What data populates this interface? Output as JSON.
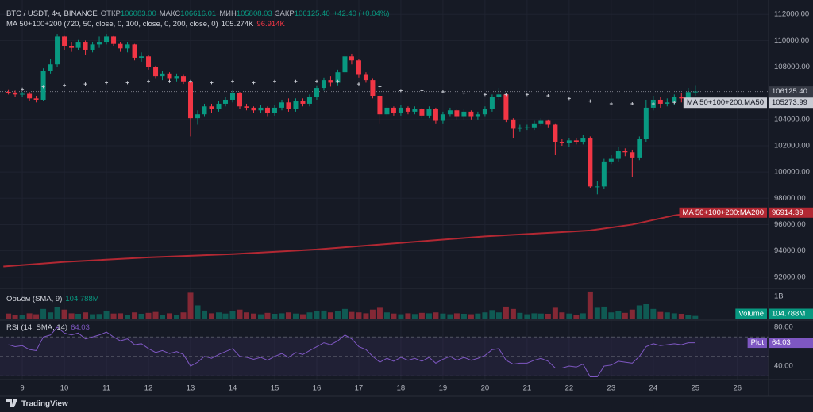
{
  "chart_data": {
    "type": "candlestick",
    "title": "BTC / USDT, 4ч, BINANCE",
    "ohlc_legend": [
      {
        "label": "ОТКР",
        "value": "106083.00"
      },
      {
        "label": "МАКС",
        "value": "106616.01"
      },
      {
        "label": "МИН",
        "value": "105808.03"
      },
      {
        "label": "ЗАКР",
        "value": "106125.40"
      }
    ],
    "change": "+42.40 (+0.04%)",
    "x": [
      8.67,
      8.83,
      9,
      9.17,
      9.33,
      9.5,
      9.67,
      9.83,
      10,
      10.17,
      10.33,
      10.5,
      10.67,
      10.83,
      11,
      11.17,
      11.33,
      11.5,
      11.67,
      11.83,
      12,
      12.17,
      12.33,
      12.5,
      12.67,
      12.83,
      13,
      13.17,
      13.33,
      13.5,
      13.67,
      13.83,
      14,
      14.17,
      14.33,
      14.5,
      14.67,
      14.83,
      15,
      15.17,
      15.33,
      15.5,
      15.67,
      15.83,
      16,
      16.17,
      16.33,
      16.5,
      16.67,
      16.83,
      17,
      17.17,
      17.33,
      17.5,
      17.67,
      17.83,
      18,
      18.17,
      18.33,
      18.5,
      18.67,
      18.83,
      19,
      19.17,
      19.33,
      19.5,
      19.67,
      19.83,
      20,
      20.17,
      20.33,
      20.5,
      20.67,
      20.83,
      21,
      21.17,
      21.33,
      21.5,
      21.67,
      21.83,
      22,
      22.17,
      22.33,
      22.5,
      22.67,
      22.83,
      23,
      23.17,
      23.33,
      23.5,
      23.67,
      23.83,
      24,
      24.17,
      24.33,
      24.5,
      24.67,
      24.83,
      25
    ],
    "xlim": [
      8.47,
      26.74
    ],
    "xticks": [
      9,
      10,
      11,
      12,
      13,
      14,
      15,
      16,
      17,
      18,
      19,
      20,
      21,
      22,
      23,
      24,
      25,
      26
    ],
    "open": [
      106100,
      106050,
      105900,
      105950,
      105600,
      105500,
      107700,
      108200,
      110300,
      109600,
      109500,
      109900,
      109300,
      109700,
      109900,
      110300,
      109800,
      109400,
      109700,
      108700,
      108800,
      108000,
      107300,
      107500,
      107100,
      107300,
      106900,
      104100,
      104400,
      105000,
      104800,
      105200,
      105500,
      106000,
      105000,
      104900,
      104700,
      104900,
      104500,
      104900,
      105300,
      104800,
      105400,
      105200,
      105700,
      106400,
      107000,
      106800,
      107600,
      108800,
      108500,
      107400,
      107000,
      105800,
      104400,
      104900,
      104500,
      104900,
      104600,
      104800,
      104300,
      104800,
      103900,
      104400,
      104700,
      104200,
      104600,
      104200,
      104400,
      104800,
      105700,
      105900,
      104000,
      103300,
      103400,
      103400,
      103700,
      103900,
      103600,
      102300,
      102200,
      102400,
      102300,
      102600,
      98900,
      98900,
      100800,
      101000,
      101600,
      101500,
      101100,
      102500,
      104900,
      105500,
      105200,
      105300,
      105700,
      105600,
      106083
    ],
    "high": [
      106300,
      106200,
      106100,
      106100,
      105800,
      107900,
      108600,
      110500,
      110400,
      109900,
      110100,
      110000,
      109900,
      110300,
      110500,
      110400,
      109900,
      109900,
      109800,
      109100,
      108900,
      108100,
      107700,
      107600,
      107500,
      107400,
      107000,
      104700,
      105200,
      105200,
      105400,
      105700,
      106200,
      106100,
      105200,
      105000,
      105100,
      105000,
      105100,
      105500,
      105600,
      105600,
      105600,
      105900,
      106600,
      107200,
      107300,
      107800,
      109000,
      109000,
      108600,
      107600,
      107100,
      105900,
      105100,
      105000,
      105100,
      105000,
      105000,
      104900,
      105000,
      104900,
      104600,
      104900,
      104800,
      104800,
      104700,
      104600,
      105000,
      105900,
      106400,
      106000,
      104100,
      103600,
      103600,
      103900,
      104100,
      104000,
      103700,
      102500,
      102600,
      102600,
      102800,
      102700,
      99300,
      101000,
      101300,
      101900,
      101800,
      101700,
      102700,
      105500,
      105800,
      105700,
      105600,
      105900,
      106000,
      106400,
      106616.01
    ],
    "low": [
      105900,
      105700,
      105700,
      105400,
      105300,
      105400,
      107500,
      108000,
      109300,
      109200,
      109300,
      108900,
      109100,
      109500,
      109700,
      109600,
      109200,
      109100,
      108500,
      108400,
      107800,
      107100,
      107000,
      106900,
      106900,
      106700,
      102700,
      103600,
      104200,
      104500,
      104600,
      105000,
      105300,
      104800,
      104700,
      104500,
      104500,
      104200,
      104300,
      104700,
      104600,
      104600,
      105000,
      105000,
      105500,
      106200,
      106500,
      106600,
      107400,
      108200,
      107200,
      106800,
      105600,
      103700,
      104200,
      104300,
      104300,
      104400,
      104400,
      104100,
      104100,
      103700,
      103700,
      104200,
      104000,
      104000,
      104000,
      104000,
      104200,
      104600,
      105500,
      103800,
      102600,
      103100,
      103200,
      103200,
      103500,
      103400,
      101300,
      102000,
      101900,
      102100,
      102100,
      98800,
      98300,
      98700,
      100600,
      100800,
      101200,
      99600,
      100900,
      102300,
      104700,
      104900,
      105000,
      105100,
      105300,
      105500,
      105808.03
    ],
    "close": [
      106050,
      105900,
      105950,
      105600,
      105500,
      107700,
      108200,
      110300,
      109600,
      109500,
      109900,
      109300,
      109700,
      109900,
      110300,
      109800,
      109400,
      109700,
      108700,
      108800,
      108000,
      107300,
      107500,
      107100,
      107300,
      106900,
      104100,
      104400,
      105000,
      104800,
      105200,
      105500,
      106000,
      105000,
      104900,
      104700,
      104900,
      104500,
      104900,
      105300,
      104800,
      105400,
      105200,
      105700,
      106400,
      107000,
      106800,
      107600,
      108800,
      108500,
      107400,
      107000,
      105800,
      104400,
      104900,
      104500,
      104900,
      104600,
      104800,
      104300,
      104800,
      103900,
      104400,
      104700,
      104200,
      104600,
      104200,
      104400,
      104800,
      105700,
      105900,
      104000,
      103300,
      103400,
      103400,
      103700,
      103900,
      103600,
      102300,
      102200,
      102400,
      102300,
      102600,
      98900,
      98900,
      100800,
      101000,
      101600,
      101500,
      101100,
      102500,
      104900,
      105500,
      105200,
      105300,
      105700,
      105600,
      106083,
      106125.4
    ],
    "up_color": "#089981",
    "down_color": "#f23645",
    "ylim": [
      91200,
      113100
    ],
    "yticks": [
      {
        "value": 92000,
        "label": "92000.00"
      },
      {
        "value": 94000,
        "label": "94000.00"
      },
      {
        "value": 96000,
        "label": "96000.00"
      },
      {
        "value": 98000,
        "label": "98000.00"
      },
      {
        "value": 100000,
        "label": "100000.00"
      },
      {
        "value": 102000,
        "label": "102000.00"
      },
      {
        "value": 104000,
        "label": "104000.00"
      },
      {
        "value": 106000,
        "label": "106000.00"
      },
      {
        "value": 108000,
        "label": "108000.00"
      },
      {
        "value": 110000,
        "label": "110000.00"
      },
      {
        "value": 112000,
        "label": "112000.00"
      }
    ],
    "grid": true,
    "last_price_label": "106125.40",
    "indicator": {
      "name": "MA 50+100+200 (720, 50, close, 0, 100, close, 0, 200, close, 0)",
      "legend_values": [
        "105.274K",
        "96.914K"
      ],
      "series": [
        {
          "name": "MA 50+100+200:MA50",
          "color": "#c9ccd4",
          "value_label": "105273.99",
          "values": [
            null,
            null,
            106300,
            null,
            null,
            106500,
            null,
            null,
            106600,
            null,
            null,
            106700,
            null,
            null,
            106800,
            null,
            null,
            106800,
            null,
            null,
            106900,
            null,
            null,
            106900,
            null,
            null,
            106900,
            null,
            null,
            106800,
            null,
            null,
            106900,
            null,
            null,
            106800,
            null,
            null,
            106900,
            null,
            null,
            106900,
            null,
            null,
            106900,
            null,
            null,
            106900,
            null,
            null,
            106700,
            null,
            null,
            106500,
            null,
            null,
            106200,
            null,
            null,
            106200,
            null,
            null,
            106100,
            null,
            null,
            106000,
            null,
            null,
            105900,
            null,
            null,
            105900,
            null,
            null,
            105900,
            null,
            null,
            105800,
            null,
            null,
            105600,
            null,
            null,
            105400,
            null,
            null,
            105200,
            null,
            null,
            105200,
            null,
            null,
            105200,
            null,
            null,
            105300,
            null,
            null,
            105273.99
          ]
        },
        {
          "name": "MA 50+100+200:MA200",
          "color": "#b22833",
          "value_label": "96914.39",
          "x": [
            8.55,
            10,
            12,
            14,
            16,
            18,
            20,
            22,
            22.5,
            23.5,
            24.5,
            25
          ],
          "values": [
            92800,
            93150,
            93500,
            93750,
            94100,
            94600,
            95100,
            95450,
            95550,
            96000,
            96700,
            96914.39
          ]
        }
      ]
    },
    "volume": {
      "title": "Объём (SMA, 9)",
      "sma_label": "104.788M",
      "axis_label": "Volume",
      "values": [
        250,
        180,
        200,
        260,
        220,
        450,
        300,
        520,
        420,
        260,
        240,
        300,
        220,
        230,
        350,
        250,
        260,
        200,
        300,
        240,
        280,
        320,
        200,
        260,
        180,
        300,
        1150,
        600,
        380,
        260,
        300,
        250,
        350,
        420,
        300,
        250,
        220,
        280,
        240,
        260,
        300,
        250,
        220,
        300,
        350,
        380,
        300,
        350,
        450,
        320,
        300,
        260,
        420,
        500,
        300,
        250,
        220,
        260,
        230,
        280,
        260,
        300,
        250,
        220,
        260,
        240,
        220,
        250,
        300,
        400,
        300,
        550,
        450,
        280,
        220,
        260,
        250,
        240,
        500,
        300,
        250,
        200,
        260,
        1200,
        500,
        550,
        300,
        350,
        280,
        420,
        600,
        650,
        450,
        320,
        300,
        260,
        240,
        200,
        150
      ],
      "ylim": [
        0,
        1300
      ],
      "yticks": [
        {
          "value": 1000,
          "label": "1B"
        }
      ]
    },
    "rsi": {
      "title": "RSI (14, SMA, 14)",
      "value_label": "64.03",
      "axis_label": "Plot",
      "color": "#7e57c2",
      "values": [
        62,
        60,
        61,
        57,
        56,
        70,
        72,
        80,
        74,
        72,
        74,
        68,
        70,
        72,
        75,
        70,
        66,
        68,
        62,
        63,
        58,
        54,
        56,
        53,
        55,
        52,
        40,
        44,
        50,
        48,
        52,
        55,
        58,
        50,
        49,
        47,
        49,
        46,
        50,
        53,
        49,
        54,
        52,
        56,
        60,
        64,
        62,
        66,
        72,
        68,
        60,
        57,
        50,
        44,
        48,
        45,
        49,
        46,
        48,
        45,
        49,
        43,
        47,
        50,
        46,
        49,
        46,
        48,
        51,
        57,
        58,
        46,
        42,
        43,
        43,
        46,
        48,
        45,
        38,
        38,
        40,
        39,
        42,
        29,
        29,
        40,
        41,
        45,
        44,
        43,
        50,
        60,
        63,
        61,
        62,
        63,
        62,
        64,
        64.03
      ],
      "ylim": [
        27,
        86.5
      ],
      "yticks": [
        {
          "value": 80,
          "label": "80.00"
        },
        {
          "value": 40,
          "label": "40.00"
        }
      ],
      "bands": [
        70,
        50,
        30
      ]
    },
    "brand": "TradingView"
  }
}
